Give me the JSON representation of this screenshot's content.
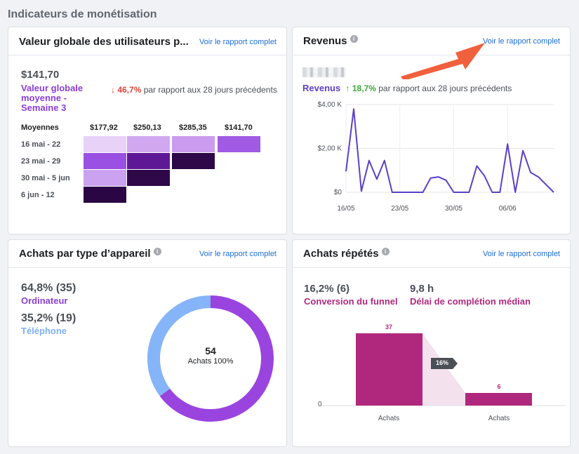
{
  "page": {
    "section_title": "Indicateurs de monétisation"
  },
  "common": {
    "report_link": "Voir le rapport complet",
    "info_glyph": "i"
  },
  "ltv": {
    "title": "Valeur globale des utilisateurs p...",
    "value": "$141,70",
    "label": "Valeur globale moyenne - Semaine 3",
    "trend": "↓ 46,7%",
    "trend_text": "par rapport aux 28 jours précédents",
    "headers": [
      "Moyennes",
      "$177,92",
      "$250,13",
      "$285,35",
      "$141,70"
    ],
    "rows": [
      "16 mai - 22",
      "23 mai - 29",
      "30 mai - 5 jun",
      "6 jun - 12"
    ]
  },
  "revenue": {
    "title": "Revenus",
    "label": "Revenus",
    "trend": "↑ 18,7%",
    "trend_text": "par rapport aux 28 jours précédents"
  },
  "chart_data": {
    "type": "line",
    "x": [
      "16/05",
      "17/05",
      "18/05",
      "19/05",
      "20/05",
      "21/05",
      "22/05",
      "23/05",
      "24/05",
      "25/05",
      "26/05",
      "27/05",
      "28/05",
      "29/05",
      "30/05",
      "31/05",
      "01/06",
      "02/06",
      "03/06",
      "04/06",
      "05/06",
      "06/06",
      "07/06",
      "08/06",
      "09/06",
      "10/06",
      "11/06",
      "12/06"
    ],
    "series": [
      {
        "name": "Revenus",
        "values": [
          950,
          3800,
          50,
          1450,
          600,
          1450,
          0,
          0,
          0,
          0,
          0,
          650,
          700,
          550,
          0,
          0,
          0,
          1200,
          750,
          0,
          0,
          2200,
          0,
          1900,
          900,
          700,
          350,
          0
        ]
      }
    ],
    "y_ticks": [
      "$0",
      "$2,00 K",
      "$4,00 K"
    ],
    "x_ticks": [
      "16/05",
      "23/05",
      "30/05",
      "06/06"
    ],
    "ylim": [
      0,
      4000
    ],
    "grid": true,
    "color": "#5b3fc8"
  },
  "devices": {
    "title": "Achats par type d’appareil",
    "desktop_value": "64,8% (35)",
    "desktop_label": "Ordinateur",
    "phone_value": "35,2% (19)",
    "phone_label": "Téléphone",
    "center_value": "54",
    "center_label": "Achats 100%",
    "desktop_share": 64.8,
    "phone_share": 35.2,
    "desktop_color": "#9a44e0",
    "phone_color": "#86b4f8"
  },
  "repeat": {
    "title": "Achats répétés",
    "funnel_value": "16,2% (6)",
    "funnel_label": "Conversion du funnel",
    "time_value": "9,8 h",
    "time_label": "Délai de complétion médian",
    "bar1_value": "37",
    "bar2_value": "6",
    "badge": "16%",
    "zero": "0",
    "bar1_label": "Achats",
    "bar2_label": "Achats",
    "bar_color": "#b0287d"
  }
}
